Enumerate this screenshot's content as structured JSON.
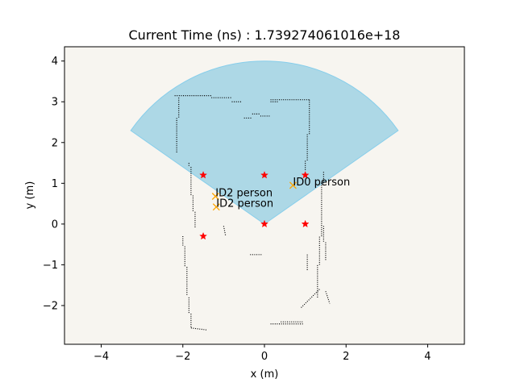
{
  "chart_data": {
    "type": "scatter",
    "title": "Current Time (ns) : 1.739274061016e+18",
    "xlabel": "x (m)",
    "ylabel": "y (m)",
    "xlim": [
      -4.9,
      4.9
    ],
    "ylim": [
      -2.95,
      4.35
    ],
    "xticks": [
      -4,
      -2,
      0,
      2,
      4
    ],
    "yticks": [
      -2,
      -1,
      0,
      1,
      2,
      3,
      4
    ],
    "grid": false,
    "background_color": "#f7f5f0",
    "sensor_fov": {
      "origin": [
        0,
        0
      ],
      "radius": 4.0,
      "angle_start_deg": 35,
      "angle_end_deg": 145,
      "color": "#add8e6",
      "edge_color": "#87ceeb"
    },
    "waypoints": {
      "marker": "star",
      "color": "#ff0000",
      "points": [
        [
          -1.5,
          1.2
        ],
        [
          0,
          1.2
        ],
        [
          1.0,
          1.2
        ],
        [
          -1.5,
          -0.3
        ],
        [
          0,
          0
        ],
        [
          1.0,
          0
        ]
      ]
    },
    "detections": {
      "marker": "x",
      "color": "#ffa500",
      "points": [
        {
          "x": 0.7,
          "y": 0.95,
          "label": "ID0 person"
        },
        {
          "x": -1.2,
          "y": 0.68,
          "label": "ID2 person"
        },
        {
          "x": -1.18,
          "y": 0.42,
          "label": "ID2 person"
        }
      ]
    },
    "occupancy_walls": {
      "color": "#000000",
      "segments": [
        [
          [
            -2.2,
            3.15
          ],
          [
            -1.3,
            3.15
          ]
        ],
        [
          [
            -1.3,
            3.1
          ],
          [
            -0.8,
            3.1
          ]
        ],
        [
          [
            -0.8,
            3.0
          ],
          [
            -0.55,
            3.0
          ]
        ],
        [
          [
            -0.5,
            2.6
          ],
          [
            -0.3,
            2.6
          ]
        ],
        [
          [
            -0.3,
            2.7
          ],
          [
            -0.1,
            2.7
          ]
        ],
        [
          [
            -0.1,
            2.65
          ],
          [
            0.15,
            2.65
          ]
        ],
        [
          [
            0.15,
            3.0
          ],
          [
            0.35,
            3.0
          ]
        ],
        [
          [
            0.15,
            3.05
          ],
          [
            1.1,
            3.05
          ]
        ],
        [
          [
            1.1,
            3.05
          ],
          [
            1.1,
            2.2
          ]
        ],
        [
          [
            1.05,
            2.2
          ],
          [
            1.05,
            1.55
          ]
        ],
        [
          [
            1.0,
            1.55
          ],
          [
            1.0,
            1.3
          ]
        ],
        [
          [
            -2.1,
            3.1
          ],
          [
            -2.1,
            2.6
          ]
        ],
        [
          [
            -2.15,
            2.6
          ],
          [
            -2.15,
            1.75
          ]
        ],
        [
          [
            -1.85,
            1.5
          ],
          [
            -1.85,
            1.4
          ]
        ],
        [
          [
            -1.8,
            1.4
          ],
          [
            -1.8,
            0.7
          ]
        ],
        [
          [
            -1.75,
            0.7
          ],
          [
            -1.75,
            0.3
          ]
        ],
        [
          [
            -1.7,
            0.3
          ],
          [
            -1.7,
            -0.1
          ]
        ],
        [
          [
            -2.0,
            -0.3
          ],
          [
            -2.0,
            -0.55
          ]
        ],
        [
          [
            -1.95,
            -0.55
          ],
          [
            -1.95,
            -1.05
          ]
        ],
        [
          [
            -1.9,
            -1.05
          ],
          [
            -1.9,
            -1.75
          ]
        ],
        [
          [
            -1.85,
            -1.8
          ],
          [
            -1.85,
            -2.2
          ]
        ],
        [
          [
            -1.8,
            -2.2
          ],
          [
            -1.8,
            -2.55
          ]
        ],
        [
          [
            -1.8,
            -2.55
          ],
          [
            -1.4,
            -2.6
          ]
        ],
        [
          [
            -1.0,
            -0.05
          ],
          [
            -0.95,
            -0.3
          ]
        ],
        [
          [
            -0.35,
            -0.75
          ],
          [
            -0.05,
            -0.75
          ]
        ],
        [
          [
            0.15,
            -2.45
          ],
          [
            0.95,
            -2.45
          ]
        ],
        [
          [
            0.4,
            -2.4
          ],
          [
            0.95,
            -2.4
          ]
        ],
        [
          [
            1.3,
            -1.8
          ],
          [
            1.3,
            -1.0
          ]
        ],
        [
          [
            1.35,
            -1.0
          ],
          [
            1.35,
            -0.3
          ]
        ],
        [
          [
            1.4,
            -0.3
          ],
          [
            1.4,
            1.0
          ]
        ],
        [
          [
            1.45,
            0.95
          ],
          [
            1.45,
            1.3
          ]
        ],
        [
          [
            1.45,
            -0.05
          ],
          [
            1.45,
            -0.45
          ]
        ],
        [
          [
            1.5,
            -0.45
          ],
          [
            1.5,
            -0.9
          ]
        ],
        [
          [
            1.05,
            -0.75
          ],
          [
            1.05,
            -1.15
          ]
        ],
        [
          [
            0.9,
            -2.05
          ],
          [
            1.35,
            -1.6
          ]
        ],
        [
          [
            1.5,
            -1.65
          ],
          [
            1.6,
            -1.95
          ]
        ]
      ]
    }
  }
}
